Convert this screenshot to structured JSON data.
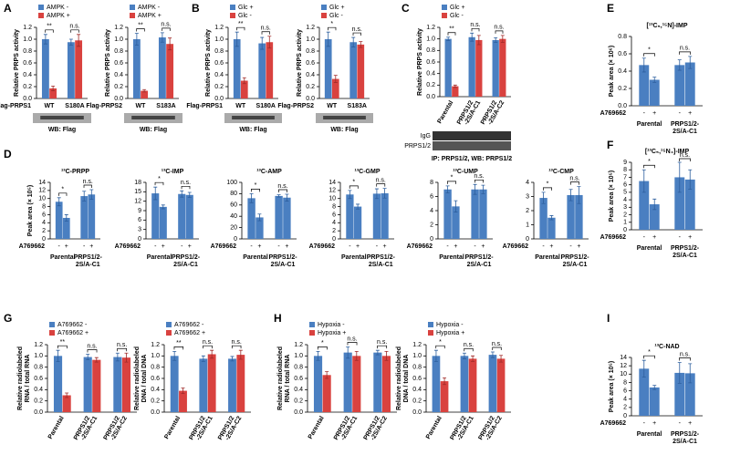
{
  "panel_labels": [
    "A",
    "B",
    "C",
    "D",
    "E",
    "F",
    "G",
    "H",
    "I"
  ],
  "chart_data": [
    {
      "type": "bar",
      "ylabel": [
        "Relative PRPS activity"
      ],
      "categories": [
        [
          "WT"
        ],
        [
          "S180A"
        ]
      ],
      "x_label": "Flag-PRPS1",
      "series": [
        {
          "name": "AMPK -",
          "color": "#4a7fc1",
          "values": [
            1.0,
            0.95
          ],
          "errors": [
            0.08,
            0.05
          ]
        },
        {
          "name": "AMPK +",
          "color": "#d9423f",
          "values": [
            0.17,
            0.98
          ],
          "errors": [
            0.04,
            0.1
          ]
        }
      ],
      "significance": [
        "**",
        "n.s."
      ],
      "ylim": [
        0,
        1.2
      ],
      "yticks": [
        {
          "value": 0,
          "label": "0.0"
        },
        0.2,
        0.4,
        0.6,
        0.8,
        {
          "value": 1,
          "label": "1.0"
        },
        1.2
      ],
      "blot_caption": "WB: Flag"
    },
    {
      "type": "bar",
      "ylabel": [
        "Relative PRPS activity"
      ],
      "categories": [
        [
          "WT"
        ],
        [
          "S183A"
        ]
      ],
      "x_label": "Flag-PRPS2",
      "series": [
        {
          "name": "AMPK -",
          "color": "#4a7fc1",
          "values": [
            1.0,
            1.03
          ],
          "errors": [
            0.1,
            0.08
          ]
        },
        {
          "name": "AMPK +",
          "color": "#d9423f",
          "values": [
            0.13,
            0.92
          ],
          "errors": [
            0.02,
            0.1
          ]
        }
      ],
      "significance": [
        "**",
        "n.s."
      ],
      "ylim": [
        0,
        1.2
      ],
      "yticks": [
        {
          "value": 0,
          "label": "0.0"
        },
        0.2,
        0.4,
        0.6,
        0.8,
        {
          "value": 1,
          "label": "1.0"
        },
        1.2
      ],
      "blot_caption": "WB: Flag"
    },
    {
      "type": "bar",
      "ylabel": [
        "Relative PRPS activity"
      ],
      "categories": [
        [
          "WT"
        ],
        [
          "S180A"
        ]
      ],
      "x_label": "Flag-PRPS1",
      "series": [
        {
          "name": "Glc +",
          "color": "#4a7fc1",
          "values": [
            1.0,
            0.93
          ],
          "errors": [
            0.12,
            0.1
          ]
        },
        {
          "name": "Glc -",
          "color": "#d9423f",
          "values": [
            0.3,
            0.95
          ],
          "errors": [
            0.05,
            0.1
          ]
        }
      ],
      "significance": [
        "**",
        "n.s."
      ],
      "ylim": [
        0,
        1.2
      ],
      "yticks": [
        {
          "value": 0,
          "label": "0.0"
        },
        0.2,
        0.4,
        0.6,
        0.8,
        {
          "value": 1,
          "label": "1.0"
        },
        1.2
      ],
      "blot_caption": "WB: Flag"
    },
    {
      "type": "bar",
      "ylabel": [
        "Relative PRPS activity"
      ],
      "categories": [
        [
          "WT"
        ],
        [
          "S183A"
        ]
      ],
      "x_label": "Flag-PRPS2",
      "series": [
        {
          "name": "Glc +",
          "color": "#4a7fc1",
          "values": [
            1.0,
            0.95
          ],
          "errors": [
            0.12,
            0.08
          ]
        },
        {
          "name": "Glc -",
          "color": "#d9423f",
          "values": [
            0.33,
            0.91
          ],
          "errors": [
            0.06,
            0.05
          ]
        }
      ],
      "significance": [
        "*",
        "n.s."
      ],
      "ylim": [
        0,
        1.2
      ],
      "yticks": [
        {
          "value": 0,
          "label": "0.0"
        },
        0.2,
        0.4,
        0.6,
        0.8,
        {
          "value": 1,
          "label": "1.0"
        },
        1.2
      ],
      "blot_caption": "WB: Flag"
    },
    {
      "type": "bar",
      "ylabel": [
        "Relative PRPS activity"
      ],
      "categories": [
        [
          "Parental"
        ],
        [
          "PRPS1/2",
          "-2S/A-C1"
        ],
        [
          "PRPS1/2",
          "-2S/A-C2"
        ]
      ],
      "rotate_categories": true,
      "series": [
        {
          "name": "Glc +",
          "color": "#4a7fc1",
          "values": [
            1.0,
            1.03,
            0.98
          ],
          "errors": [
            0.03,
            0.07,
            0.04
          ]
        },
        {
          "name": "Glc -",
          "color": "#d9423f",
          "values": [
            0.18,
            0.98,
            1.0
          ],
          "errors": [
            0.02,
            0.08,
            0.06
          ]
        }
      ],
      "significance": [
        "**",
        "n.s.",
        "n.s."
      ],
      "ylim": [
        0,
        1.2
      ],
      "yticks": [
        {
          "value": 0,
          "label": "0.0"
        },
        0.2,
        0.4,
        0.6,
        0.8,
        {
          "value": 1,
          "label": "1.0"
        },
        1.2
      ],
      "blot_rows": [
        "IgG",
        "PRPS1/2"
      ],
      "blot_caption": "IP: PRPS1/2, WB: PRPS1/2"
    },
    {
      "type": "bar",
      "title": "¹³C-PRPP",
      "ylabel": [
        "Peak area (× 10⁵)"
      ],
      "categories": [
        [
          "Parental"
        ],
        [
          "PRPS1/2-",
          "2S/A-C1"
        ]
      ],
      "condition_label": "A769662",
      "series": [
        {
          "name": "-",
          "color": "#4a7fc1",
          "values": [
            9.2,
            10.6
          ],
          "errors": [
            1,
            1.2
          ]
        },
        {
          "name": "+",
          "color": "#4a7fc1",
          "values": [
            5.2,
            11.0
          ],
          "errors": [
            0.8,
            1.2
          ]
        }
      ],
      "significance": [
        "*",
        "n.s."
      ],
      "ylim": [
        0,
        14
      ],
      "yticks": [
        0,
        2,
        4,
        6,
        8,
        10,
        12,
        14
      ]
    },
    {
      "type": "bar",
      "title": "¹³C-IMP",
      "categories": [
        [
          "Parental"
        ],
        [
          "PRPS1/2-",
          "2S/A-C1"
        ]
      ],
      "condition_label": "A769662",
      "series": [
        {
          "name": "-",
          "color": "#4a7fc1",
          "values": [
            14.5,
            14.3
          ],
          "errors": [
            2,
            1
          ]
        },
        {
          "name": "+",
          "color": "#4a7fc1",
          "values": [
            10.2,
            14.0
          ],
          "errors": [
            0.6,
            0.8
          ]
        }
      ],
      "significance": [
        "*",
        "n.s."
      ],
      "ylim": [
        0,
        18
      ],
      "yticks": [
        0,
        3,
        6,
        9,
        12,
        15,
        18
      ]
    },
    {
      "type": "bar",
      "title": "¹³C-AMP",
      "categories": [
        [
          "Parental"
        ],
        [
          "PRPS1/2-",
          "2S/A-C1"
        ]
      ],
      "condition_label": "A769662",
      "series": [
        {
          "name": "-",
          "color": "#4a7fc1",
          "values": [
            72,
            76
          ],
          "errors": [
            8,
            2
          ]
        },
        {
          "name": "+",
          "color": "#4a7fc1",
          "values": [
            38,
            73
          ],
          "errors": [
            6,
            6
          ]
        }
      ],
      "significance": [
        "*",
        "n.s."
      ],
      "ylim": [
        0,
        100
      ],
      "yticks": [
        0,
        20,
        40,
        60,
        80,
        100
      ]
    },
    {
      "type": "bar",
      "title": "¹³C-GMP",
      "categories": [
        [
          "Parental"
        ],
        [
          "PRPS1/2-",
          "2S/A-C1"
        ]
      ],
      "condition_label": "A769662",
      "series": [
        {
          "name": "-",
          "color": "#4a7fc1",
          "values": [
            11,
            11.2
          ],
          "errors": [
            1,
            1.2
          ]
        },
        {
          "name": "+",
          "color": "#4a7fc1",
          "values": [
            8,
            11.3
          ],
          "errors": [
            0.6,
            1.2
          ]
        }
      ],
      "significance": [
        "*",
        "n.s."
      ],
      "ylim": [
        0,
        14
      ],
      "yticks": [
        0,
        2,
        4,
        6,
        8,
        10,
        12,
        14
      ]
    },
    {
      "type": "bar",
      "title": "¹³C-UMP",
      "categories": [
        [
          "Parental"
        ],
        [
          "PRPS1/2-",
          "2S/A-C1"
        ]
      ],
      "condition_label": "A769662",
      "series": [
        {
          "name": "-",
          "color": "#4a7fc1",
          "values": [
            7,
            7
          ],
          "errors": [
            0.5,
            0.7
          ]
        },
        {
          "name": "+",
          "color": "#4a7fc1",
          "values": [
            4.6,
            7
          ],
          "errors": [
            0.8,
            0.6
          ]
        }
      ],
      "significance": [
        "*",
        "n.s."
      ],
      "ylim": [
        0,
        8
      ],
      "yticks": [
        0,
        2,
        4,
        6,
        8
      ]
    },
    {
      "type": "bar",
      "title": "¹³C-CMP",
      "categories": [
        [
          "Parental"
        ],
        [
          "PRPS1/2-",
          "2S/A-C1"
        ]
      ],
      "condition_label": "A769662",
      "series": [
        {
          "name": "-",
          "color": "#4a7fc1",
          "values": [
            2.9,
            3.1
          ],
          "errors": [
            0.4,
            0.4
          ]
        },
        {
          "name": "+",
          "color": "#4a7fc1",
          "values": [
            1.5,
            3.1
          ],
          "errors": [
            0.15,
            0.6
          ]
        }
      ],
      "significance": [
        "*",
        "n.s."
      ],
      "ylim": [
        0,
        4
      ],
      "yticks": [
        0,
        1,
        2,
        3,
        4
      ]
    },
    {
      "type": "bar",
      "title": "[¹³C₅,¹⁵N]-IMP",
      "ylabel": [
        "Peak area (× 10⁶)"
      ],
      "categories": [
        [
          "Parental"
        ],
        [
          "PRPS1/2-",
          "2S/A-C1"
        ]
      ],
      "condition_label": "A769662",
      "series": [
        {
          "name": "-",
          "color": "#4a7fc1",
          "values": [
            0.47,
            0.47
          ],
          "errors": [
            0.08,
            0.06
          ]
        },
        {
          "name": "+",
          "color": "#4a7fc1",
          "values": [
            0.3,
            0.5
          ],
          "errors": [
            0.03,
            0.07
          ]
        }
      ],
      "significance": [
        "*",
        "n.s."
      ],
      "ylim": [
        0,
        0.8
      ],
      "yticks": [
        {
          "value": 0,
          "label": "0.0"
        },
        0.2,
        0.4,
        0.6,
        0.8
      ]
    },
    {
      "type": "bar",
      "title": "[¹³C₅,¹⁵N₄]-IMP",
      "ylabel": [
        "Peak area (× 10⁵)"
      ],
      "categories": [
        [
          "Parental"
        ],
        [
          "PRPS1/2-",
          "2S/A-C1"
        ]
      ],
      "condition_label": "A769662",
      "series": [
        {
          "name": "-",
          "color": "#4a7fc1",
          "values": [
            6.5,
            7
          ],
          "errors": [
            1.5,
            2
          ]
        },
        {
          "name": "+",
          "color": "#4a7fc1",
          "values": [
            3.4,
            6.7
          ],
          "errors": [
            0.7,
            1.3
          ]
        }
      ],
      "significance": [
        "*",
        "n.s."
      ],
      "ylim": [
        0,
        9
      ],
      "yticks": [
        0,
        1,
        2,
        3,
        4,
        5,
        6,
        7,
        8,
        9
      ]
    },
    {
      "type": "bar",
      "ylabel": [
        "Relative radiolabeled",
        "RNA / total RNA"
      ],
      "categories": [
        [
          "Parental"
        ],
        [
          "PRPS1/2",
          "-2S/A-C1"
        ],
        [
          "PRPS1/2",
          "-2S/A-C2"
        ]
      ],
      "rotate_categories": true,
      "series": [
        {
          "name": "A769662 -",
          "color": "#4a7fc1",
          "values": [
            1.0,
            0.98,
            0.98
          ],
          "errors": [
            0.1,
            0.05,
            0.07
          ]
        },
        {
          "name": "A769662 +",
          "color": "#d9423f",
          "values": [
            0.3,
            0.93,
            0.97
          ],
          "errors": [
            0.04,
            0.04,
            0.08
          ]
        }
      ],
      "significance": [
        "**",
        "n.s.",
        "n.s."
      ],
      "ylim": [
        0,
        1.2
      ],
      "yticks": [
        {
          "value": 0,
          "label": "0.0"
        },
        0.2,
        0.4,
        0.6,
        0.8,
        {
          "value": 1,
          "label": "1.0"
        },
        1.2
      ]
    },
    {
      "type": "bar",
      "ylabel": [
        "Relative radiolabeled",
        "DNA / total DNA"
      ],
      "categories": [
        [
          "Parental"
        ],
        [
          "PRPS1/2",
          "-2S/A-C1"
        ],
        [
          "PRPS1/2",
          "-2S/A-C2"
        ]
      ],
      "rotate_categories": true,
      "series": [
        {
          "name": "A769662 -",
          "color": "#4a7fc1",
          "values": [
            1.0,
            0.95,
            0.95
          ],
          "errors": [
            0.08,
            0.05,
            0.04
          ]
        },
        {
          "name": "A769662 +",
          "color": "#d9423f",
          "values": [
            0.38,
            1.03,
            1.02
          ],
          "errors": [
            0.05,
            0.07,
            0.08
          ]
        }
      ],
      "significance": [
        "**",
        "n.s.",
        "n.s."
      ],
      "ylim": [
        0,
        1.2
      ],
      "yticks": [
        {
          "value": 0,
          "label": "0.0"
        },
        0.2,
        0.4,
        0.6,
        0.8,
        {
          "value": 1,
          "label": "1.0"
        },
        1.2
      ]
    },
    {
      "type": "bar",
      "ylabel": [
        "Relative radiolabeled",
        "RNA / total RNA"
      ],
      "categories": [
        [
          "Parental"
        ],
        [
          "PRPS1/2",
          "-2S/A-C1"
        ],
        [
          "PRPS1/2",
          "-2S/A-C2"
        ]
      ],
      "rotate_categories": true,
      "series": [
        {
          "name": "Hypoxia -",
          "color": "#4a7fc1",
          "values": [
            1.0,
            1.06,
            1.06
          ],
          "errors": [
            0.08,
            0.1,
            0.04
          ]
        },
        {
          "name": "Hypoxia +",
          "color": "#d9423f",
          "values": [
            0.66,
            1.0,
            1.0
          ],
          "errors": [
            0.06,
            0.08,
            0.08
          ]
        }
      ],
      "significance": [
        "*",
        "n.s.",
        "n.s."
      ],
      "ylim": [
        0,
        1.2
      ],
      "yticks": [
        {
          "value": 0,
          "label": "0.0"
        },
        0.2,
        0.4,
        0.6,
        0.8,
        {
          "value": 1,
          "label": "1.0"
        },
        1.2
      ]
    },
    {
      "type": "bar",
      "ylabel": [
        "Relative radiolabeled",
        "DNA / total DNA"
      ],
      "categories": [
        [
          "Parental"
        ],
        [
          "PRPS1/2",
          "-2S/A-C1"
        ],
        [
          "PRPS1/2",
          "-2S/A-C2"
        ]
      ],
      "rotate_categories": true,
      "series": [
        {
          "name": "Hypoxia -",
          "color": "#4a7fc1",
          "values": [
            1.0,
            1.0,
            1.02
          ],
          "errors": [
            0.1,
            0.05,
            0.05
          ]
        },
        {
          "name": "Hypoxia +",
          "color": "#d9423f",
          "values": [
            0.55,
            0.95,
            0.95
          ],
          "errors": [
            0.06,
            0.05,
            0.06
          ]
        }
      ],
      "significance": [
        "*",
        "n.s.",
        "n.s."
      ],
      "ylim": [
        0,
        1.2
      ],
      "yticks": [
        {
          "value": 0,
          "label": "0.0"
        },
        0.2,
        0.4,
        0.6,
        0.8,
        {
          "value": 1,
          "label": "1.0"
        },
        1.2
      ]
    },
    {
      "type": "bar",
      "title": "¹³C-NAD",
      "ylabel": [
        "Peak area (× 10⁵)"
      ],
      "categories": [
        [
          "Parental"
        ],
        [
          "PRPS1/2-",
          "2S/A-C1"
        ]
      ],
      "condition_label": "A769662",
      "series": [
        {
          "name": "-",
          "color": "#4a7fc1",
          "values": [
            11.3,
            10.3
          ],
          "errors": [
            2,
            2.5
          ]
        },
        {
          "name": "+",
          "color": "#4a7fc1",
          "values": [
            6.8,
            10.2
          ],
          "errors": [
            0.5,
            2.3
          ]
        }
      ],
      "significance": [
        "*",
        "n.s."
      ],
      "ylim": [
        0,
        14
      ],
      "yticks": [
        0,
        2,
        4,
        6,
        8,
        10,
        12,
        14
      ]
    }
  ]
}
